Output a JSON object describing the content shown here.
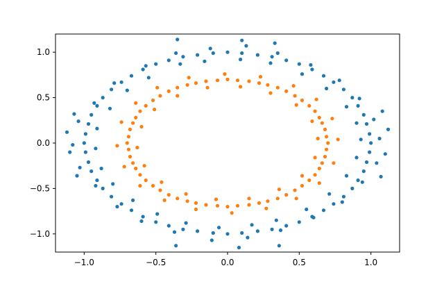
{
  "chart_data": {
    "type": "scatter",
    "title": "",
    "xlabel": "",
    "ylabel": "",
    "xlim": [
      -1.2,
      1.2
    ],
    "ylim": [
      -1.2,
      1.2
    ],
    "grid": false,
    "legend": "none",
    "x_ticks": [
      {
        "value": -1.0,
        "label": "−1.0"
      },
      {
        "value": -0.5,
        "label": "−0.5"
      },
      {
        "value": 0.0,
        "label": "0.0"
      },
      {
        "value": 0.5,
        "label": "0.5"
      },
      {
        "value": 1.0,
        "label": "1.0"
      }
    ],
    "y_ticks": [
      {
        "value": 1.0,
        "label": "1.0"
      },
      {
        "value": 0.5,
        "label": "0.5"
      },
      {
        "value": 0.0,
        "label": "0.0"
      },
      {
        "value": -0.5,
        "label": "−0.5"
      },
      {
        "value": -1.0,
        "label": "−1.0"
      }
    ],
    "series": [
      {
        "color": "#1f77b4",
        "points": [
          [
            1.0,
            0.0
          ],
          [
            0.99,
            0.1
          ],
          [
            0.97,
            0.21
          ],
          [
            0.95,
            0.31
          ],
          [
            0.91,
            0.41
          ],
          [
            0.87,
            0.5
          ],
          [
            0.81,
            0.59
          ],
          [
            0.74,
            0.67
          ],
          [
            0.67,
            0.74
          ],
          [
            0.59,
            0.81
          ],
          [
            0.5,
            0.87
          ],
          [
            0.41,
            0.91
          ],
          [
            0.31,
            0.95
          ],
          [
            0.21,
            0.97
          ],
          [
            0.1,
            0.99
          ],
          [
            0.0,
            1.0
          ],
          [
            -0.1,
            0.99
          ],
          [
            -0.21,
            0.97
          ],
          [
            -0.31,
            0.95
          ],
          [
            -0.41,
            0.91
          ],
          [
            -0.5,
            0.87
          ],
          [
            -0.59,
            0.81
          ],
          [
            -0.67,
            0.74
          ],
          [
            -0.74,
            0.67
          ],
          [
            -0.81,
            0.59
          ],
          [
            -0.87,
            0.5
          ],
          [
            -0.91,
            0.41
          ],
          [
            -0.95,
            0.31
          ],
          [
            -0.97,
            0.21
          ],
          [
            -0.99,
            0.1
          ],
          [
            -1.0,
            0.0
          ],
          [
            -0.99,
            -0.1
          ],
          [
            -0.97,
            -0.21
          ],
          [
            -0.95,
            -0.31
          ],
          [
            -0.91,
            -0.41
          ],
          [
            -0.87,
            -0.5
          ],
          [
            -0.81,
            -0.59
          ],
          [
            -0.74,
            -0.67
          ],
          [
            -0.67,
            -0.74
          ],
          [
            -0.59,
            -0.81
          ],
          [
            -0.5,
            -0.87
          ],
          [
            -0.41,
            -0.91
          ],
          [
            -0.31,
            -0.95
          ],
          [
            -0.21,
            -0.97
          ],
          [
            -0.1,
            -0.99
          ],
          [
            0.0,
            -1.0
          ],
          [
            0.1,
            -0.99
          ],
          [
            0.21,
            -0.97
          ],
          [
            0.31,
            -0.95
          ],
          [
            0.41,
            -0.91
          ],
          [
            0.5,
            -0.87
          ],
          [
            0.59,
            -0.81
          ],
          [
            0.67,
            -0.74
          ],
          [
            0.74,
            -0.67
          ],
          [
            0.81,
            -0.59
          ],
          [
            0.87,
            -0.5
          ],
          [
            0.91,
            -0.41
          ],
          [
            0.95,
            -0.31
          ],
          [
            0.97,
            -0.21
          ],
          [
            0.99,
            -0.1
          ],
          [
            1.06,
            0.05
          ],
          [
            1.02,
            0.26
          ],
          [
            0.92,
            0.49
          ],
          [
            0.78,
            0.69
          ],
          [
            0.58,
            0.86
          ],
          [
            0.35,
            0.99
          ],
          [
            0.13,
            1.07
          ],
          [
            -0.12,
            1.04
          ],
          [
            -0.36,
            0.99
          ],
          [
            -0.57,
            0.85
          ],
          [
            -0.79,
            0.66
          ],
          [
            -0.93,
            0.44
          ],
          [
            -1.04,
            0.24
          ],
          [
            -1.08,
            -0.02
          ],
          [
            -1.03,
            -0.27
          ],
          [
            -0.92,
            -0.47
          ],
          [
            -0.77,
            -0.7
          ],
          [
            -0.6,
            -0.86
          ],
          [
            -0.37,
            -0.98
          ],
          [
            -0.11,
            -1.07
          ],
          [
            0.14,
            -1.04
          ],
          [
            0.37,
            -0.96
          ],
          [
            0.6,
            -0.82
          ],
          [
            0.8,
            -0.65
          ],
          [
            0.94,
            -0.43
          ],
          [
            1.04,
            -0.22
          ],
          [
            0.93,
            0.04
          ],
          [
            0.9,
            0.22
          ],
          [
            0.83,
            0.4
          ],
          [
            0.69,
            0.6
          ],
          [
            0.52,
            0.76
          ],
          [
            0.3,
            0.88
          ],
          [
            0.09,
            0.92
          ],
          [
            -0.16,
            0.9
          ],
          [
            -0.33,
            0.87
          ],
          [
            -0.55,
            0.72
          ],
          [
            -0.7,
            0.58
          ],
          [
            -0.82,
            0.38
          ],
          [
            -0.91,
            0.16
          ],
          [
            -0.92,
            -0.06
          ],
          [
            -0.88,
            -0.28
          ],
          [
            -0.8,
            -0.45
          ],
          [
            -0.66,
            -0.63
          ],
          [
            -0.49,
            -0.78
          ],
          [
            -0.29,
            -0.88
          ],
          [
            -0.06,
            -0.93
          ],
          [
            0.17,
            -0.9
          ],
          [
            0.34,
            -0.85
          ],
          [
            0.55,
            -0.73
          ],
          [
            0.71,
            -0.56
          ],
          [
            0.83,
            -0.36
          ],
          [
            0.9,
            -0.16
          ],
          [
            1.12,
            0.15
          ],
          [
            1.1,
            -0.12
          ],
          [
            -1.12,
            0.12
          ],
          [
            -1.1,
            -0.1
          ],
          [
            0.33,
            1.1
          ],
          [
            -0.35,
            1.14
          ],
          [
            0.1,
            1.13
          ],
          [
            -0.36,
            -1.13
          ],
          [
            0.08,
            -1.15
          ],
          [
            0.36,
            -1.13
          ],
          [
            1.08,
            0.35
          ],
          [
            -1.07,
            0.32
          ],
          [
            1.07,
            -0.37
          ],
          [
            -1.05,
            -0.36
          ]
        ]
      },
      {
        "color": "#ff7f0e",
        "points": [
          [
            0.7,
            0.0
          ],
          [
            0.69,
            0.07
          ],
          [
            0.68,
            0.15
          ],
          [
            0.66,
            0.22
          ],
          [
            0.64,
            0.28
          ],
          [
            0.61,
            0.35
          ],
          [
            0.57,
            0.41
          ],
          [
            0.52,
            0.47
          ],
          [
            0.47,
            0.52
          ],
          [
            0.41,
            0.57
          ],
          [
            0.35,
            0.61
          ],
          [
            0.28,
            0.64
          ],
          [
            0.22,
            0.66
          ],
          [
            0.15,
            0.68
          ],
          [
            0.07,
            0.69
          ],
          [
            0.0,
            0.7
          ],
          [
            -0.07,
            0.69
          ],
          [
            -0.15,
            0.68
          ],
          [
            -0.22,
            0.66
          ],
          [
            -0.28,
            0.64
          ],
          [
            -0.35,
            0.61
          ],
          [
            -0.41,
            0.57
          ],
          [
            -0.47,
            0.52
          ],
          [
            -0.52,
            0.47
          ],
          [
            -0.57,
            0.41
          ],
          [
            -0.61,
            0.35
          ],
          [
            -0.64,
            0.28
          ],
          [
            -0.66,
            0.22
          ],
          [
            -0.68,
            0.15
          ],
          [
            -0.69,
            0.07
          ],
          [
            -0.7,
            0.0
          ],
          [
            -0.69,
            -0.07
          ],
          [
            -0.68,
            -0.15
          ],
          [
            -0.66,
            -0.22
          ],
          [
            -0.64,
            -0.28
          ],
          [
            -0.61,
            -0.35
          ],
          [
            -0.57,
            -0.41
          ],
          [
            -0.52,
            -0.47
          ],
          [
            -0.47,
            -0.52
          ],
          [
            -0.41,
            -0.57
          ],
          [
            -0.35,
            -0.61
          ],
          [
            -0.28,
            -0.64
          ],
          [
            -0.22,
            -0.66
          ],
          [
            -0.15,
            -0.68
          ],
          [
            -0.07,
            -0.69
          ],
          [
            0.0,
            -0.7
          ],
          [
            0.07,
            -0.69
          ],
          [
            0.15,
            -0.68
          ],
          [
            0.22,
            -0.66
          ],
          [
            0.28,
            -0.64
          ],
          [
            0.35,
            -0.61
          ],
          [
            0.41,
            -0.57
          ],
          [
            0.47,
            -0.52
          ],
          [
            0.52,
            -0.47
          ],
          [
            0.57,
            -0.41
          ],
          [
            0.61,
            -0.35
          ],
          [
            0.64,
            -0.28
          ],
          [
            0.66,
            -0.22
          ],
          [
            0.68,
            -0.15
          ],
          [
            0.69,
            -0.07
          ],
          [
            0.77,
            0.04
          ],
          [
            0.73,
            0.27
          ],
          [
            0.62,
            0.48
          ],
          [
            0.46,
            0.63
          ],
          [
            0.23,
            0.73
          ],
          [
            -0.02,
            0.76
          ],
          [
            -0.27,
            0.72
          ],
          [
            -0.49,
            0.61
          ],
          [
            -0.64,
            0.44
          ],
          [
            -0.74,
            0.23
          ],
          [
            -0.77,
            -0.03
          ],
          [
            -0.72,
            -0.26
          ],
          [
            -0.61,
            -0.47
          ],
          [
            -0.44,
            -0.63
          ],
          [
            -0.22,
            -0.73
          ],
          [
            0.03,
            -0.77
          ],
          [
            0.27,
            -0.72
          ],
          [
            0.48,
            -0.61
          ],
          [
            0.64,
            -0.44
          ],
          [
            0.74,
            -0.22
          ],
          [
            0.63,
            0.05
          ],
          [
            0.59,
            0.24
          ],
          [
            0.48,
            0.42
          ],
          [
            0.3,
            0.55
          ],
          [
            0.09,
            0.62
          ],
          [
            -0.14,
            0.61
          ],
          [
            -0.35,
            0.52
          ],
          [
            -0.51,
            0.37
          ],
          [
            -0.6,
            0.18
          ],
          [
            -0.63,
            -0.05
          ],
          [
            -0.58,
            -0.25
          ],
          [
            -0.46,
            -0.43
          ],
          [
            -0.29,
            -0.56
          ],
          [
            -0.08,
            -0.62
          ],
          [
            0.15,
            -0.61
          ],
          [
            0.36,
            -0.51
          ],
          [
            0.52,
            -0.36
          ],
          [
            0.61,
            -0.16
          ]
        ]
      }
    ]
  }
}
